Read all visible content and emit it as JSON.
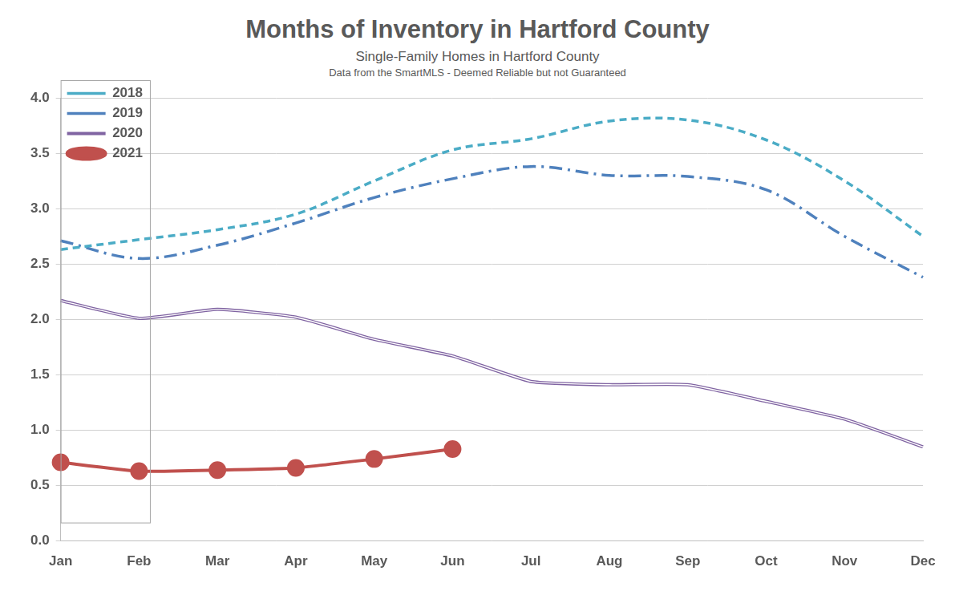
{
  "chart_data": {
    "type": "line",
    "title": "Months of Inventory in Hartford County",
    "subtitle": "Single-Family Homes in Hartford County",
    "note": "Data from the SmartMLS - Deemed Reliable but not Guaranteed",
    "categories": [
      "Jan",
      "Feb",
      "Mar",
      "Apr",
      "May",
      "Jun",
      "Jul",
      "Aug",
      "Sep",
      "Oct",
      "Nov",
      "Dec"
    ],
    "series": [
      {
        "name": "2018",
        "color": "#4bacc6",
        "line_style": "dashed",
        "marker": "none",
        "values": [
          2.63,
          2.72,
          2.81,
          2.95,
          3.25,
          3.53,
          3.63,
          3.79,
          3.8,
          3.62,
          3.25,
          2.75
        ]
      },
      {
        "name": "2019",
        "color": "#4f81bd",
        "line_style": "dash_dot",
        "marker": "none",
        "values": [
          2.71,
          2.55,
          2.67,
          2.87,
          3.1,
          3.27,
          3.38,
          3.3,
          3.29,
          3.17,
          2.75,
          2.38
        ]
      },
      {
        "name": "2020",
        "color": "#8064a2",
        "line_style": "double",
        "marker": "none",
        "values": [
          2.17,
          2.01,
          2.09,
          2.02,
          1.82,
          1.67,
          1.44,
          1.41,
          1.41,
          1.26,
          1.1,
          0.85
        ]
      },
      {
        "name": "2021",
        "color": "#c0504d",
        "line_style": "solid",
        "marker": "circle",
        "values": [
          0.71,
          0.63,
          0.64,
          0.66,
          0.74,
          0.83,
          null,
          null,
          null,
          null,
          null,
          null
        ]
      }
    ],
    "ylim": [
      0,
      4
    ],
    "yticks": [
      {
        "value": 0,
        "label": "0.0"
      },
      0.5,
      {
        "value": 1,
        "label": "1.0"
      },
      1.5,
      {
        "value": 2,
        "label": "2.0"
      },
      2.5,
      {
        "value": 3,
        "label": "3.0"
      },
      3.5,
      {
        "value": 4,
        "label": "4.0"
      }
    ],
    "grid": true,
    "legend": "top-left"
  }
}
